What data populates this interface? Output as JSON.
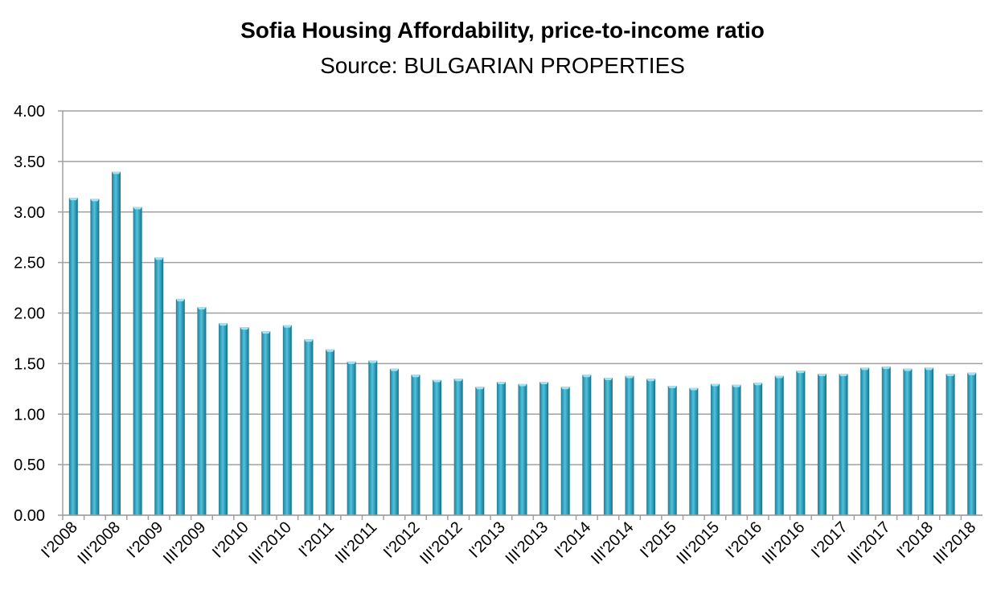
{
  "chart_data": {
    "type": "bar",
    "title": "Sofia Housing Affordability, price-to-income ratio",
    "subtitle": "Source: BULGARIAN PROPERTIES",
    "xlabel": "",
    "ylabel": "",
    "ylim": [
      0,
      4
    ],
    "yticks": [
      "0.00",
      "0.50",
      "1.00",
      "1.50",
      "2.00",
      "2.50",
      "3.00",
      "3.50",
      "4.00"
    ],
    "grid": true,
    "tick_labels": [
      "I'2008",
      "III'2008",
      "I'2009",
      "III'2009",
      "I'2010",
      "III'2010",
      "I'2011",
      "III'2011",
      "I'2012",
      "III'2012",
      "I'2013",
      "III'2013",
      "I'2014",
      "III'2014",
      "I'2015",
      "III'2015",
      "I'2016",
      "III'2016",
      "I'2017",
      "III'2017",
      "I'2018",
      "III'2018"
    ],
    "values": [
      3.14,
      3.13,
      3.4,
      3.05,
      2.55,
      2.14,
      2.06,
      1.9,
      1.86,
      1.82,
      1.88,
      1.74,
      1.64,
      1.52,
      1.53,
      1.45,
      1.39,
      1.34,
      1.35,
      1.27,
      1.32,
      1.3,
      1.32,
      1.27,
      1.39,
      1.36,
      1.38,
      1.35,
      1.28,
      1.26,
      1.3,
      1.29,
      1.31,
      1.38,
      1.43,
      1.4,
      1.4,
      1.46,
      1.47,
      1.45,
      1.46,
      1.4,
      1.41
    ],
    "bar_color": "#2fa3c0",
    "grid_color": "#a0a0a0"
  }
}
